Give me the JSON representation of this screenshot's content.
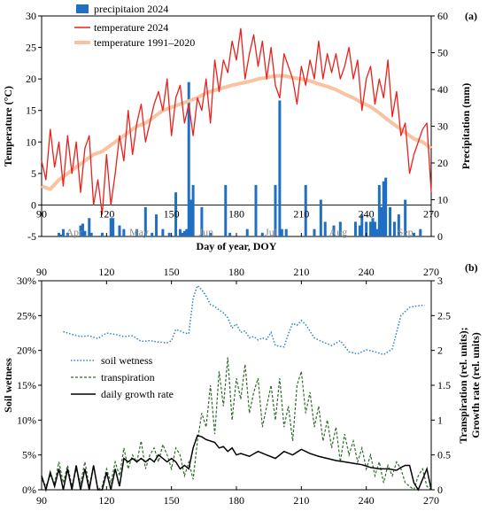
{
  "chart_data": [
    {
      "type": "line",
      "panel_label": "(a)",
      "xlabel": "Day of year, DOY",
      "ylabel_left": "Temperature (°C)",
      "ylabel_right": "Precipitation (mm)",
      "xlim": [
        90,
        270
      ],
      "ylim_left": [
        -5,
        30
      ],
      "ylim_right": [
        0,
        60
      ],
      "x_ticks": [
        90,
        120,
        150,
        180,
        210,
        240,
        270
      ],
      "y_ticks_left": [
        -5,
        0,
        5,
        10,
        15,
        20,
        25,
        30
      ],
      "y_ticks_right": [
        0,
        10,
        20,
        30,
        40,
        50,
        60
      ],
      "month_labels": [
        {
          "text": "Apr",
          "doy": 105
        },
        {
          "text": "May",
          "doy": 135
        },
        {
          "text": "Jun",
          "doy": 166
        },
        {
          "text": "Jul",
          "doy": 196
        },
        {
          "text": "Aug",
          "doy": 227
        },
        {
          "text": "Sep",
          "doy": 258
        }
      ],
      "legend_position": "top-left",
      "colors": {
        "precip": "#1f6fc5",
        "temp2024": "#e8211c",
        "tempNorm": "#f7c3a0"
      },
      "series": [
        {
          "name": "precipitaion 2024",
          "kind": "bar",
          "axis": "right",
          "x": [
            98,
            99,
            100,
            102,
            108,
            109,
            110,
            112,
            113,
            118,
            122,
            123,
            126,
            128,
            134,
            138,
            141,
            143,
            146,
            149,
            152,
            154,
            155,
            156,
            157,
            158,
            159,
            160,
            164,
            168,
            175,
            177,
            185,
            189,
            192,
            198,
            200,
            201,
            203,
            212,
            216,
            219,
            221,
            225,
            228,
            235,
            237,
            238,
            240,
            242,
            243,
            244,
            245,
            246,
            247,
            248,
            249,
            251,
            253,
            255,
            258,
            262,
            265
          ],
          "values": [
            1,
            0.5,
            2,
            1,
            3,
            3.5,
            1.5,
            5,
            1,
            1,
            5,
            5,
            3,
            2,
            2,
            8,
            1,
            6,
            2,
            1,
            12,
            2,
            1,
            1.5,
            2,
            42,
            10,
            14,
            8,
            1,
            14,
            1,
            2,
            14,
            1,
            14,
            37,
            2,
            2,
            14,
            2,
            10,
            4,
            3,
            4,
            4,
            3,
            6,
            4,
            4,
            5,
            4,
            2,
            14,
            8,
            15,
            16,
            8,
            4,
            6,
            10,
            1,
            2
          ]
        },
        {
          "name": "temperature 2024",
          "kind": "line",
          "axis": "left",
          "x": [
            90,
            92,
            94,
            96,
            98,
            100,
            102,
            104,
            106,
            108,
            110,
            112,
            114,
            116,
            118,
            120,
            122,
            124,
            126,
            128,
            130,
            132,
            134,
            136,
            138,
            140,
            142,
            144,
            146,
            148,
            150,
            152,
            154,
            156,
            158,
            160,
            162,
            164,
            166,
            168,
            170,
            172,
            174,
            176,
            178,
            180,
            182,
            184,
            186,
            188,
            190,
            192,
            194,
            196,
            198,
            200,
            202,
            204,
            206,
            208,
            210,
            212,
            214,
            216,
            218,
            220,
            222,
            224,
            226,
            228,
            230,
            232,
            234,
            236,
            238,
            240,
            242,
            244,
            246,
            248,
            250,
            252,
            254,
            256,
            258,
            260,
            262,
            264,
            266,
            268,
            270
          ],
          "values": [
            7,
            4,
            12,
            6,
            10,
            3,
            11,
            5,
            10,
            2,
            9,
            11,
            0,
            4,
            -1.5,
            8,
            0,
            5,
            11,
            7,
            15,
            8,
            13,
            16,
            10,
            13,
            16,
            18,
            15,
            20,
            11,
            17,
            19,
            13,
            16,
            11,
            17,
            15,
            20,
            13,
            23,
            18,
            23,
            21,
            26,
            23,
            28,
            20,
            24,
            27,
            22,
            26,
            20,
            25,
            19,
            17,
            24,
            22,
            20,
            16,
            22,
            19,
            23,
            20,
            26,
            20,
            24,
            21,
            24,
            20,
            22,
            25,
            20,
            23,
            15,
            20,
            22,
            16,
            20,
            17,
            23,
            14,
            18,
            11,
            13,
            5,
            8,
            10,
            12,
            13,
            2
          ]
        },
        {
          "name": "temperature 1991–2020",
          "kind": "line",
          "axis": "left",
          "x": [
            90,
            94,
            98,
            102,
            106,
            110,
            114,
            118,
            122,
            126,
            130,
            134,
            138,
            142,
            146,
            150,
            154,
            158,
            162,
            166,
            170,
            174,
            178,
            182,
            186,
            190,
            194,
            198,
            202,
            206,
            210,
            214,
            218,
            222,
            226,
            230,
            234,
            238,
            242,
            246,
            250,
            254,
            258,
            262,
            266,
            270
          ],
          "values": [
            3,
            2.5,
            4,
            5,
            6,
            7,
            8,
            8.5,
            9.5,
            10.5,
            11.5,
            12.5,
            13,
            14,
            15,
            15.5,
            16,
            16.5,
            17,
            17.8,
            18.2,
            18.6,
            19,
            19.3,
            19.6,
            20,
            20.2,
            20.5,
            20.5,
            20.2,
            20,
            19.7,
            19.2,
            18.8,
            18.3,
            17.6,
            17,
            16.2,
            15.6,
            14.6,
            13.5,
            12.5,
            11.5,
            10.5,
            10,
            9
          ]
        }
      ]
    },
    {
      "type": "line",
      "panel_label": "(b)",
      "ylabel_left": "Soil wetness",
      "ylabel_right": "Transpiration (rel. units);",
      "ylabel_right2": "Growth rate (rel. units)",
      "xlim": [
        90,
        270
      ],
      "ylim_left": [
        0,
        30
      ],
      "ylim_right": [
        0,
        3
      ],
      "x_ticks": [
        90,
        120,
        150,
        180,
        210,
        240,
        270
      ],
      "y_ticks_left": [
        "0%",
        "5%",
        "10%",
        "15%",
        "20%",
        "25%",
        "30%"
      ],
      "y_ticks_right": [
        0,
        0.5,
        1,
        1.5,
        2,
        2.5,
        3
      ],
      "legend_position": "left-middle",
      "colors": {
        "soil": "#2f80c9",
        "transp": "#2e6b2a",
        "growth": "#000000"
      },
      "series": [
        {
          "name": "soil wetness",
          "axis": "left",
          "style": "dotted",
          "x": [
            100,
            104,
            108,
            112,
            116,
            120,
            124,
            128,
            132,
            136,
            140,
            144,
            148,
            150,
            152,
            154,
            156,
            158,
            160,
            162,
            164,
            166,
            168,
            170,
            172,
            174,
            176,
            178,
            180,
            182,
            184,
            186,
            188,
            190,
            192,
            194,
            196,
            198,
            200,
            202,
            204,
            206,
            208,
            210,
            212,
            216,
            220,
            224,
            228,
            232,
            236,
            240,
            244,
            248,
            252,
            256,
            260,
            264,
            267
          ],
          "values": [
            22.7,
            22.3,
            22,
            22.1,
            21.7,
            22.5,
            22.3,
            22,
            22.1,
            21.3,
            21.4,
            21.2,
            21.1,
            21.4,
            23,
            22.8,
            22.5,
            22.4,
            27.5,
            29.3,
            28.7,
            27.8,
            26.6,
            26.3,
            25.8,
            25.4,
            24.7,
            23.2,
            23.8,
            22.6,
            22.8,
            21.8,
            22,
            21.5,
            21.8,
            21.6,
            22.6,
            20.7,
            20.6,
            20.5,
            22.4,
            23.9,
            23.6,
            24.3,
            23.7,
            21.8,
            21.2,
            20.7,
            21.4,
            19.8,
            19.5,
            20.1,
            19.8,
            19.4,
            20.2,
            25,
            26.2,
            26.4,
            26.5
          ]
        },
        {
          "name": "transpiration",
          "axis": "right",
          "style": "dashed",
          "x": [
            90,
            92,
            94,
            96,
            98,
            100,
            102,
            104,
            106,
            108,
            110,
            112,
            114,
            116,
            118,
            120,
            122,
            124,
            126,
            128,
            130,
            132,
            134,
            136,
            138,
            140,
            142,
            144,
            146,
            148,
            150,
            152,
            154,
            156,
            158,
            160,
            162,
            164,
            166,
            168,
            170,
            172,
            174,
            176,
            178,
            180,
            182,
            184,
            186,
            188,
            190,
            192,
            194,
            196,
            198,
            200,
            202,
            204,
            206,
            208,
            210,
            212,
            214,
            216,
            218,
            220,
            222,
            224,
            226,
            228,
            230,
            232,
            234,
            236,
            238,
            240,
            242,
            244,
            246,
            248,
            250,
            252,
            254,
            256,
            258,
            260,
            262,
            264,
            266,
            268,
            270
          ],
          "values": [
            0.15,
            0.05,
            0.2,
            0.1,
            0.4,
            0.1,
            0.35,
            0.05,
            0.3,
            0.1,
            0.4,
            0.05,
            0.35,
            0,
            0.05,
            0.3,
            0.1,
            0.4,
            0.2,
            0.6,
            0.3,
            0.5,
            0.4,
            0.7,
            0.3,
            0.5,
            0.6,
            0.4,
            0.65,
            0.5,
            0.3,
            0.6,
            0.5,
            0.2,
            0.4,
            0.15,
            0.7,
            1.1,
            0.9,
            1.5,
            0.8,
            1.7,
            1.2,
            1.9,
            1.0,
            1.6,
            1.3,
            1.8,
            1.1,
            1.4,
            1.6,
            0.9,
            1.2,
            1.5,
            1.0,
            1.6,
            0.9,
            1.2,
            0.7,
            1.5,
            1.7,
            1.1,
            1.4,
            0.9,
            1.2,
            0.7,
            1.0,
            0.6,
            0.9,
            0.4,
            0.8,
            0.5,
            0.7,
            0.4,
            0.6,
            0.3,
            0.5,
            0.2,
            0.4,
            0.1,
            0.35,
            0.2,
            0.4,
            0.3,
            0.1,
            0.05,
            0.0,
            0.2,
            0.3,
            0.05,
            0.0
          ]
        },
        {
          "name": "daily growth rate",
          "axis": "right",
          "style": "solid",
          "x": [
            90,
            92,
            94,
            96,
            98,
            100,
            102,
            104,
            106,
            108,
            110,
            112,
            114,
            116,
            118,
            120,
            122,
            124,
            126,
            128,
            130,
            132,
            134,
            136,
            138,
            140,
            142,
            144,
            146,
            148,
            150,
            152,
            154,
            156,
            158,
            160,
            162,
            164,
            166,
            168,
            170,
            172,
            174,
            176,
            178,
            180,
            182,
            186,
            190,
            194,
            198,
            202,
            206,
            210,
            214,
            218,
            222,
            226,
            230,
            234,
            238,
            242,
            246,
            250,
            254,
            256,
            258,
            260,
            262,
            264,
            266,
            268,
            270
          ],
          "values": [
            0.2,
            0.0,
            0.25,
            0.05,
            0.3,
            0.0,
            0.3,
            0.0,
            0.35,
            0.0,
            0.3,
            0.0,
            0.35,
            0.0,
            0.0,
            0.25,
            0.0,
            0.3,
            0.05,
            0.45,
            0.4,
            0.45,
            0.4,
            0.45,
            0.4,
            0.45,
            0.4,
            0.5,
            0.45,
            0.4,
            0.45,
            0.4,
            0.3,
            0.35,
            0.3,
            0.6,
            0.78,
            0.76,
            0.72,
            0.7,
            0.68,
            0.6,
            0.62,
            0.55,
            0.6,
            0.5,
            0.52,
            0.48,
            0.55,
            0.5,
            0.45,
            0.55,
            0.5,
            0.58,
            0.52,
            0.48,
            0.45,
            0.42,
            0.4,
            0.38,
            0.36,
            0.32,
            0.3,
            0.3,
            0.28,
            0.32,
            0.35,
            0.35,
            0.1,
            0.0,
            0.15,
            0.3,
            0.0
          ]
        }
      ]
    }
  ]
}
